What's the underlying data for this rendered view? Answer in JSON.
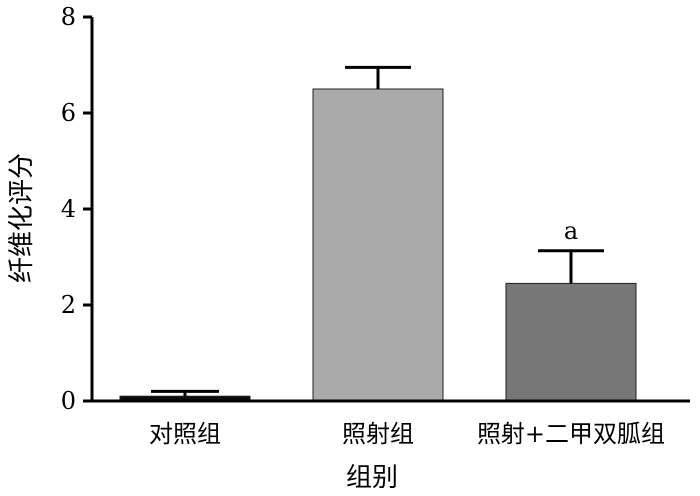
{
  "chart_data": {
    "type": "bar",
    "categories": [
      "对照组",
      "照射组",
      "照射+二甲双胍组"
    ],
    "values": [
      0.1,
      6.5,
      2.45
    ],
    "errors": [
      0.1,
      0.45,
      0.68
    ],
    "colors": [
      "#0b0b0b",
      "#aaaaaa",
      "#777777"
    ],
    "xlabel": "组别",
    "ylabel": "纤维化评分",
    "ylim": [
      0,
      8
    ],
    "yticks": [
      0,
      2,
      4,
      6,
      8
    ],
    "annotations": [
      {
        "category_index": 2,
        "text": "a"
      }
    ],
    "grid": false,
    "legend": "none"
  }
}
